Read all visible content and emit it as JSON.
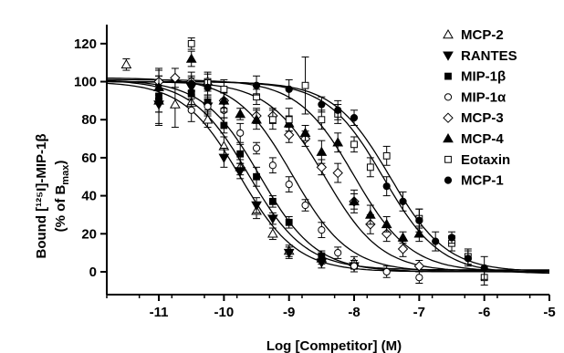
{
  "chart_data": {
    "type": "scatter",
    "title": "",
    "xlabel": "Log [Competitor] (M)",
    "ylabel_line1": "Bound [¹²⁵I]-MIP-1β",
    "ylabel_line2": "(% of B",
    "ylabel_line2_sub": "max",
    "ylabel_line2_end": ")",
    "xlim": [
      -11.8,
      -5
    ],
    "ylim": [
      -12,
      130
    ],
    "xticks": [
      -11,
      -10,
      -9,
      -8,
      -7,
      -6,
      -5
    ],
    "yticks": [
      0,
      20,
      40,
      60,
      80,
      100,
      120
    ],
    "legend_position": "right",
    "series": [
      {
        "name": "MCP-2",
        "marker": "triangle-open",
        "ic50": -9.75,
        "top": 100,
        "bottom": 0,
        "points": [
          [
            -11.5,
            109,
            3
          ],
          [
            -11.0,
            90,
            13
          ],
          [
            -10.75,
            88,
            12
          ],
          [
            -10.5,
            89,
            4
          ],
          [
            -10.25,
            80,
            4
          ],
          [
            -10.0,
            66,
            5
          ],
          [
            -9.75,
            55,
            4
          ],
          [
            -9.5,
            32,
            4
          ],
          [
            -9.25,
            20,
            3
          ],
          [
            -9.0,
            11,
            3
          ],
          [
            -8.5,
            7,
            3
          ],
          [
            -8.0,
            5,
            3
          ]
        ]
      },
      {
        "name": "RANTES",
        "marker": "triangle-down-filled",
        "ic50": -9.62,
        "top": 101,
        "bottom": 1,
        "points": [
          [
            -11.0,
            88,
            10
          ],
          [
            -10.5,
            97,
            5
          ],
          [
            -10.25,
            87,
            5
          ],
          [
            -10.0,
            60,
            5
          ],
          [
            -9.75,
            53,
            4
          ],
          [
            -9.5,
            35,
            4
          ],
          [
            -9.25,
            28,
            3
          ],
          [
            -9.0,
            10,
            3
          ],
          [
            -8.5,
            5,
            3
          ],
          [
            -8.0,
            3,
            3
          ]
        ]
      },
      {
        "name": "MIP-1β",
        "marker": "square-filled",
        "ic50": -9.45,
        "top": 101,
        "bottom": 0,
        "points": [
          [
            -11.0,
            92,
            8
          ],
          [
            -10.5,
            94,
            6
          ],
          [
            -10.25,
            89,
            4
          ],
          [
            -10.0,
            77,
            4
          ],
          [
            -9.75,
            62,
            5
          ],
          [
            -9.5,
            50,
            5
          ],
          [
            -9.25,
            37,
            3
          ],
          [
            -9.0,
            26,
            3
          ],
          [
            -8.5,
            8,
            3
          ],
          [
            -8.0,
            3,
            3
          ]
        ]
      },
      {
        "name": "MIP-1α",
        "marker": "circle-open",
        "ic50": -8.95,
        "top": 102,
        "bottom": 0,
        "points": [
          [
            -11.0,
            100,
            7
          ],
          [
            -10.5,
            85,
            6
          ],
          [
            -10.25,
            87,
            4
          ],
          [
            -10.0,
            85,
            4
          ],
          [
            -9.75,
            73,
            5
          ],
          [
            -9.5,
            65,
            3
          ],
          [
            -9.25,
            56,
            4
          ],
          [
            -9.0,
            46,
            4
          ],
          [
            -8.75,
            35,
            3
          ],
          [
            -8.5,
            22,
            4
          ],
          [
            -8.25,
            10,
            3
          ],
          [
            -8.0,
            3,
            3
          ],
          [
            -7.5,
            0,
            3
          ],
          [
            -7.0,
            -3,
            3
          ]
        ]
      },
      {
        "name": "MCP-3",
        "marker": "diamond-open",
        "ic50": -8.45,
        "top": 100,
        "bottom": 0,
        "points": [
          [
            -11.0,
            100,
            6
          ],
          [
            -10.75,
            102,
            5
          ],
          [
            -10.5,
            100,
            5
          ],
          [
            -10.0,
            90,
            6
          ],
          [
            -9.5,
            82,
            4
          ],
          [
            -9.25,
            82,
            4
          ],
          [
            -9.0,
            72,
            4
          ],
          [
            -8.75,
            70,
            4
          ],
          [
            -8.5,
            55,
            4
          ],
          [
            -8.25,
            52,
            5
          ],
          [
            -8.0,
            37,
            4
          ],
          [
            -7.75,
            25,
            5
          ],
          [
            -7.5,
            20,
            4
          ],
          [
            -7.25,
            12,
            4
          ],
          [
            -7.0,
            3,
            3
          ]
        ]
      },
      {
        "name": "MCP-4",
        "marker": "triangle-filled",
        "ic50": -8.0,
        "top": 101,
        "bottom": 0,
        "points": [
          [
            -11.0,
            97,
            6
          ],
          [
            -10.5,
            112,
            4
          ],
          [
            -10.25,
            100,
            4
          ],
          [
            -10.0,
            90,
            4
          ],
          [
            -9.75,
            83,
            3
          ],
          [
            -9.5,
            80,
            5
          ],
          [
            -9.0,
            78,
            4
          ],
          [
            -8.75,
            73,
            4
          ],
          [
            -8.5,
            63,
            6
          ],
          [
            -8.25,
            68,
            5
          ],
          [
            -8.0,
            37,
            6
          ],
          [
            -7.75,
            30,
            5
          ],
          [
            -7.5,
            25,
            4
          ],
          [
            -7.25,
            18,
            3
          ],
          [
            -7.0,
            20,
            4
          ]
        ]
      },
      {
        "name": "Eotaxin",
        "marker": "square-open",
        "ic50": -7.55,
        "top": 100,
        "bottom": -1,
        "points": [
          [
            -10.5,
            120,
            3
          ],
          [
            -10.25,
            100,
            5
          ],
          [
            -10.0,
            96,
            5
          ],
          [
            -9.5,
            92,
            4
          ],
          [
            -9.25,
            80,
            5
          ],
          [
            -9.0,
            80,
            6
          ],
          [
            -8.75,
            98,
            15
          ],
          [
            -8.5,
            80,
            5
          ],
          [
            -8.25,
            83,
            5
          ],
          [
            -8.0,
            67,
            4
          ],
          [
            -7.75,
            55,
            5
          ],
          [
            -7.5,
            61,
            5
          ],
          [
            -7.0,
            28,
            5
          ],
          [
            -6.5,
            15,
            4
          ],
          [
            -6.25,
            8,
            4
          ],
          [
            -6.0,
            -3,
            4
          ]
        ]
      },
      {
        "name": "MCP-1",
        "marker": "circle-filled",
        "ic50": -7.45,
        "top": 100,
        "bottom": 0,
        "points": [
          [
            -11.0,
            91,
            7
          ],
          [
            -10.5,
            99,
            4
          ],
          [
            -10.25,
            97,
            4
          ],
          [
            -9.5,
            98,
            5
          ],
          [
            -9.0,
            96,
            5
          ],
          [
            -8.5,
            88,
            4
          ],
          [
            -8.25,
            85,
            5
          ],
          [
            -8.0,
            81,
            4
          ],
          [
            -7.5,
            45,
            5
          ],
          [
            -7.25,
            37,
            5
          ],
          [
            -7.0,
            27,
            6
          ],
          [
            -6.75,
            16,
            5
          ],
          [
            -6.5,
            18,
            3
          ],
          [
            -6.25,
            7,
            4
          ],
          [
            -6.0,
            2,
            6
          ]
        ]
      }
    ]
  }
}
